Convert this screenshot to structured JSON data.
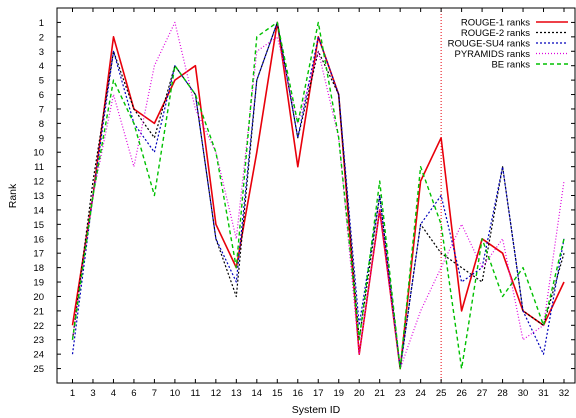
{
  "chart_data": {
    "type": "line",
    "xlabel": "System ID",
    "ylabel": "Rank",
    "x_ticks": [
      "1",
      "3",
      "4",
      "6",
      "7",
      "10",
      "11",
      "12",
      "13",
      "14",
      "15",
      "16",
      "17",
      "19",
      "20",
      "21",
      "23",
      "24",
      "25",
      "26",
      "27",
      "28",
      "30",
      "31",
      "32"
    ],
    "y_ticks": [
      "1",
      "2",
      "3",
      "4",
      "5",
      "6",
      "7",
      "8",
      "9",
      "10",
      "11",
      "12",
      "13",
      "14",
      "15",
      "16",
      "17",
      "18",
      "19",
      "20",
      "21",
      "22",
      "23",
      "24",
      "25"
    ],
    "y_inverted": true,
    "ylim": [
      0,
      26
    ],
    "grid": false,
    "legend_position": "top-right",
    "vertical_marker": {
      "x": "25",
      "color": "#e8000b",
      "style": "dotted"
    },
    "series": [
      {
        "name": "ROUGE-1 ranks",
        "color": "#e8000b",
        "dash": "solid",
        "width": 1.6,
        "values": [
          22,
          13,
          2,
          7,
          8,
          5,
          4,
          15,
          18,
          10,
          1,
          11,
          2,
          6,
          24,
          14,
          25,
          12,
          9,
          21,
          16,
          17,
          21,
          22,
          19
        ]
      },
      {
        "name": "ROUGE-2 ranks",
        "color": "#000000",
        "dash": "2,2",
        "width": 1.2,
        "values": [
          23,
          12,
          3,
          7,
          9,
          4,
          6,
          16,
          20,
          5,
          1,
          9,
          3,
          6,
          23,
          13,
          25,
          15,
          17,
          18,
          19,
          11,
          21,
          22,
          17
        ]
      },
      {
        "name": "ROUGE-SU4 ranks",
        "color": "#0000bb",
        "dash": "2,2",
        "width": 1.2,
        "values": [
          24,
          13,
          3,
          8,
          10,
          4,
          6,
          16,
          19,
          5,
          1,
          9,
          2,
          6,
          22,
          13,
          25,
          15,
          13,
          19,
          18,
          11,
          21,
          24,
          16
        ]
      },
      {
        "name": "PYRAMIDS ranks",
        "color": "#dd00dd",
        "dash": "1,2",
        "width": 1.2,
        "values": [
          23,
          13,
          6,
          11,
          4,
          1,
          7,
          10,
          16,
          3,
          2,
          8,
          3,
          9,
          24,
          14,
          25,
          21,
          18,
          15,
          18,
          16,
          23,
          22,
          12
        ]
      },
      {
        "name": "BE ranks",
        "color": "#00c000",
        "dash": "4,3",
        "width": 1.4,
        "values": [
          23,
          13,
          5,
          8,
          13,
          4,
          6,
          10,
          18,
          2,
          1,
          8,
          1,
          9,
          23,
          12,
          25,
          11,
          15,
          25,
          16,
          20,
          18,
          22,
          16
        ]
      }
    ]
  }
}
